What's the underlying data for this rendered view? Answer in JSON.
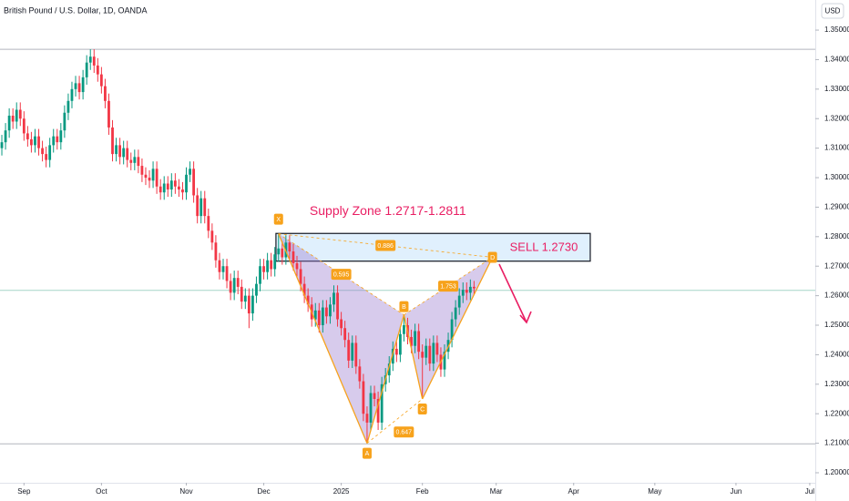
{
  "chart_data": {
    "type": "candlestick",
    "title": "British Pound / U.S. Dollar, 1D, OANDA",
    "currency": "USD",
    "up_color": "#089981",
    "down_color": "#f23645",
    "xlim": [
      -0.5,
      220.5
    ],
    "xticks": [
      {
        "value": 6,
        "label": "Sep"
      },
      {
        "value": 27,
        "label": "Oct"
      },
      {
        "value": 50,
        "label": "Nov"
      },
      {
        "value": 71,
        "label": "Dec"
      },
      {
        "value": 92,
        "label": "2025"
      },
      {
        "value": 114,
        "label": "Feb"
      },
      {
        "value": 134,
        "label": "Mar"
      },
      {
        "value": 155,
        "label": "Apr"
      },
      {
        "value": 177,
        "label": "May"
      },
      {
        "value": 199,
        "label": "Jun"
      },
      {
        "value": 219,
        "label": "Jul"
      }
    ],
    "ylim": [
      1.1966,
      1.3602
    ],
    "yticks": [
      {
        "value": 1.35,
        "label": "1.35000"
      },
      {
        "value": 1.34,
        "label": "1.34000"
      },
      {
        "value": 1.33,
        "label": "1.33000"
      },
      {
        "value": 1.32,
        "label": "1.32000"
      },
      {
        "value": 1.31,
        "label": "1.31000"
      },
      {
        "value": 1.3,
        "label": "1.30000"
      },
      {
        "value": 1.29,
        "label": "1.29000"
      },
      {
        "value": 1.28,
        "label": "1.28000"
      },
      {
        "value": 1.27,
        "label": "1.27000"
      },
      {
        "value": 1.26,
        "label": "1.26000"
      },
      {
        "value": 1.25,
        "label": "1.25000"
      },
      {
        "value": 1.24,
        "label": "1.24000"
      },
      {
        "value": 1.23,
        "label": "1.23000"
      },
      {
        "value": 1.22,
        "label": "1.22000"
      },
      {
        "value": 1.21,
        "label": "1.21000"
      },
      {
        "value": 1.2,
        "label": "1.20000"
      }
    ],
    "hlines": [
      {
        "value": 1.3435,
        "color": "#b2b5be"
      },
      {
        "value": 1.2618,
        "color": "#a5d6c8"
      },
      {
        "value": 1.2098,
        "color": "#b2b5be"
      }
    ],
    "candles": [
      [
        1.31,
        1.3145,
        1.3075,
        1.312
      ],
      [
        1.312,
        1.3185,
        1.3095,
        1.316
      ],
      [
        1.316,
        1.3235,
        1.3135,
        1.321
      ],
      [
        1.321,
        1.3235,
        1.3165,
        1.319
      ],
      [
        1.319,
        1.3255,
        1.3165,
        1.323
      ],
      [
        1.323,
        1.3255,
        1.3175,
        1.32
      ],
      [
        1.32,
        1.3225,
        1.3125,
        1.315
      ],
      [
        1.315,
        1.3175,
        1.3105,
        1.313
      ],
      [
        1.313,
        1.3155,
        1.3085,
        1.311
      ],
      [
        1.311,
        1.3165,
        1.3085,
        1.314
      ],
      [
        1.314,
        1.3165,
        1.3075,
        1.31
      ],
      [
        1.31,
        1.3125,
        1.3055,
        1.308
      ],
      [
        1.308,
        1.3105,
        1.3035,
        1.306
      ],
      [
        1.306,
        1.3135,
        1.3035,
        1.311
      ],
      [
        1.311,
        1.3165,
        1.3085,
        1.314
      ],
      [
        1.314,
        1.3165,
        1.3095,
        1.312
      ],
      [
        1.312,
        1.3185,
        1.3095,
        1.316
      ],
      [
        1.316,
        1.3245,
        1.3135,
        1.322
      ],
      [
        1.322,
        1.3285,
        1.3195,
        1.326
      ],
      [
        1.326,
        1.3325,
        1.3235,
        1.33
      ],
      [
        1.33,
        1.3345,
        1.3275,
        1.332
      ],
      [
        1.332,
        1.3345,
        1.3265,
        1.329
      ],
      [
        1.329,
        1.3365,
        1.3265,
        1.334
      ],
      [
        1.334,
        1.3415,
        1.3315,
        1.339
      ],
      [
        1.339,
        1.3435,
        1.3365,
        1.341
      ],
      [
        1.341,
        1.3435,
        1.3355,
        1.338
      ],
      [
        1.338,
        1.3405,
        1.3325,
        1.335
      ],
      [
        1.335,
        1.3375,
        1.3285,
        1.331
      ],
      [
        1.331,
        1.3335,
        1.3235,
        1.326
      ],
      [
        1.326,
        1.3285,
        1.3145,
        1.317
      ],
      [
        1.317,
        1.3195,
        1.3055,
        1.308
      ],
      [
        1.308,
        1.3135,
        1.3055,
        1.311
      ],
      [
        1.311,
        1.3135,
        1.3045,
        1.307
      ],
      [
        1.307,
        1.3125,
        1.3045,
        1.31
      ],
      [
        1.31,
        1.3125,
        1.3035,
        1.306
      ],
      [
        1.306,
        1.3085,
        1.3025,
        1.305
      ],
      [
        1.305,
        1.3095,
        1.3025,
        1.307
      ],
      [
        1.307,
        1.3095,
        1.3015,
        1.304
      ],
      [
        1.304,
        1.3065,
        1.2985,
        1.301
      ],
      [
        1.301,
        1.3035,
        1.2975,
        1.3
      ],
      [
        1.3,
        1.3025,
        1.2965,
        1.299
      ],
      [
        1.299,
        1.3055,
        1.2965,
        1.303
      ],
      [
        1.303,
        1.3055,
        1.2945,
        1.297
      ],
      [
        1.297,
        1.2995,
        1.2925,
        1.295
      ],
      [
        1.295,
        1.3005,
        1.2925,
        1.298
      ],
      [
        1.298,
        1.3005,
        1.2935,
        1.296
      ],
      [
        1.296,
        1.3015,
        1.2935,
        1.299
      ],
      [
        1.299,
        1.3015,
        1.2945,
        1.297
      ],
      [
        1.297,
        1.2995,
        1.2935,
        1.296
      ],
      [
        1.296,
        1.2985,
        1.2925,
        1.295
      ],
      [
        1.295,
        1.3035,
        1.2925,
        1.301
      ],
      [
        1.301,
        1.3055,
        1.2985,
        1.303
      ],
      [
        1.303,
        1.3055,
        1.2915,
        1.294
      ],
      [
        1.294,
        1.2965,
        1.2845,
        1.287
      ],
      [
        1.287,
        1.2955,
        1.2845,
        1.293
      ],
      [
        1.293,
        1.2955,
        1.2845,
        1.287
      ],
      [
        1.287,
        1.2895,
        1.2795,
        1.282
      ],
      [
        1.282,
        1.2845,
        1.2755,
        1.278
      ],
      [
        1.278,
        1.2805,
        1.2695,
        1.272
      ],
      [
        1.272,
        1.2745,
        1.2655,
        1.268
      ],
      [
        1.268,
        1.2725,
        1.2655,
        1.27
      ],
      [
        1.27,
        1.2725,
        1.2625,
        1.265
      ],
      [
        1.265,
        1.2675,
        1.2585,
        1.261
      ],
      [
        1.261,
        1.2685,
        1.2585,
        1.266
      ],
      [
        1.266,
        1.2685,
        1.2605,
        1.263
      ],
      [
        1.263,
        1.2655,
        1.2555,
        1.258
      ],
      [
        1.258,
        1.2625,
        1.2555,
        1.26
      ],
      [
        1.26,
        1.2625,
        1.249,
        1.254
      ],
      [
        1.254,
        1.2625,
        1.2515,
        1.26
      ],
      [
        1.26,
        1.2665,
        1.2575,
        1.264
      ],
      [
        1.264,
        1.2725,
        1.2615,
        1.27
      ],
      [
        1.27,
        1.2725,
        1.2655,
        1.268
      ],
      [
        1.268,
        1.2745,
        1.2655,
        1.272
      ],
      [
        1.272,
        1.2745,
        1.2665,
        1.269
      ],
      [
        1.269,
        1.2765,
        1.2665,
        1.274
      ],
      [
        1.274,
        1.281,
        1.2715,
        1.276
      ],
      [
        1.276,
        1.2785,
        1.2705,
        1.273
      ],
      [
        1.273,
        1.2805,
        1.2705,
        1.278
      ],
      [
        1.278,
        1.2805,
        1.2725,
        1.275
      ],
      [
        1.275,
        1.2775,
        1.2685,
        1.271
      ],
      [
        1.271,
        1.2735,
        1.2665,
        1.269
      ],
      [
        1.269,
        1.2715,
        1.2615,
        1.264
      ],
      [
        1.264,
        1.2665,
        1.2575,
        1.26
      ],
      [
        1.26,
        1.2625,
        1.2545,
        1.257
      ],
      [
        1.257,
        1.2595,
        1.2495,
        1.252
      ],
      [
        1.252,
        1.2575,
        1.2495,
        1.255
      ],
      [
        1.255,
        1.2575,
        1.2475,
        1.25
      ],
      [
        1.25,
        1.2585,
        1.2475,
        1.256
      ],
      [
        1.256,
        1.2585,
        1.2505,
        1.253
      ],
      [
        1.253,
        1.2595,
        1.2505,
        1.257
      ],
      [
        1.257,
        1.2635,
        1.2545,
        1.261
      ],
      [
        1.261,
        1.2635,
        1.2495,
        1.252
      ],
      [
        1.252,
        1.2545,
        1.2465,
        1.249
      ],
      [
        1.249,
        1.2515,
        1.2425,
        1.245
      ],
      [
        1.245,
        1.2475,
        1.2355,
        1.238
      ],
      [
        1.238,
        1.2465,
        1.2355,
        1.244
      ],
      [
        1.244,
        1.2465,
        1.2335,
        1.236
      ],
      [
        1.236,
        1.2385,
        1.2285,
        1.231
      ],
      [
        1.231,
        1.2335,
        1.2175,
        1.22
      ],
      [
        1.22,
        1.2225,
        1.21,
        1.217
      ],
      [
        1.217,
        1.2295,
        1.2145,
        1.227
      ],
      [
        1.227,
        1.2295,
        1.2225,
        1.225
      ],
      [
        1.225,
        1.2275,
        1.2145,
        1.217
      ],
      [
        1.217,
        1.2325,
        1.2145,
        1.23
      ],
      [
        1.23,
        1.2355,
        1.2275,
        1.233
      ],
      [
        1.233,
        1.2395,
        1.2305,
        1.237
      ],
      [
        1.237,
        1.2445,
        1.2345,
        1.242
      ],
      [
        1.242,
        1.2445,
        1.2375,
        1.24
      ],
      [
        1.24,
        1.2495,
        1.2375,
        1.247
      ],
      [
        1.247,
        1.2535,
        1.2445,
        1.25
      ],
      [
        1.25,
        1.2525,
        1.2435,
        1.246
      ],
      [
        1.246,
        1.2485,
        1.2405,
        1.243
      ],
      [
        1.243,
        1.2505,
        1.2405,
        1.248
      ],
      [
        1.248,
        1.2505,
        1.2385,
        1.241
      ],
      [
        1.241,
        1.2435,
        1.225,
        1.239
      ],
      [
        1.239,
        1.2455,
        1.2365,
        1.243
      ],
      [
        1.243,
        1.2455,
        1.2345,
        1.237
      ],
      [
        1.237,
        1.2465,
        1.2345,
        1.244
      ],
      [
        1.244,
        1.2465,
        1.2375,
        1.24
      ],
      [
        1.24,
        1.2425,
        1.2325,
        1.235
      ],
      [
        1.235,
        1.2435,
        1.2325,
        1.241
      ],
      [
        1.241,
        1.2475,
        1.2385,
        1.245
      ],
      [
        1.245,
        1.2545,
        1.2425,
        1.252
      ],
      [
        1.252,
        1.2585,
        1.2495,
        1.256
      ],
      [
        1.256,
        1.2625,
        1.2535,
        1.26
      ],
      [
        1.26,
        1.2645,
        1.2575,
        1.262
      ],
      [
        1.262,
        1.2645,
        1.2585,
        1.261
      ],
      [
        1.261,
        1.2655,
        1.2585,
        1.263
      ],
      [
        1.263,
        1.265,
        1.2605,
        1.2625
      ]
    ],
    "zone": {
      "label": "Supply Zone 1.2717-1.2811",
      "high": 1.2811,
      "low": 1.2717,
      "x": [
        74.3,
        159.5
      ]
    },
    "sell": {
      "label": "SELL 1.2730"
    },
    "pattern": {
      "points": [
        {
          "label": "X",
          "x": 75,
          "y": 1.281
        },
        {
          "label": "A",
          "x": 99,
          "y": 1.21
        },
        {
          "label": "B",
          "x": 109,
          "y": 1.2535
        },
        {
          "label": "C",
          "x": 114,
          "y": 1.225
        },
        {
          "label": "D",
          "x": 133,
          "y": 1.273
        }
      ],
      "ratios": [
        0.886,
        0.595,
        0.647,
        1.753
      ]
    }
  }
}
